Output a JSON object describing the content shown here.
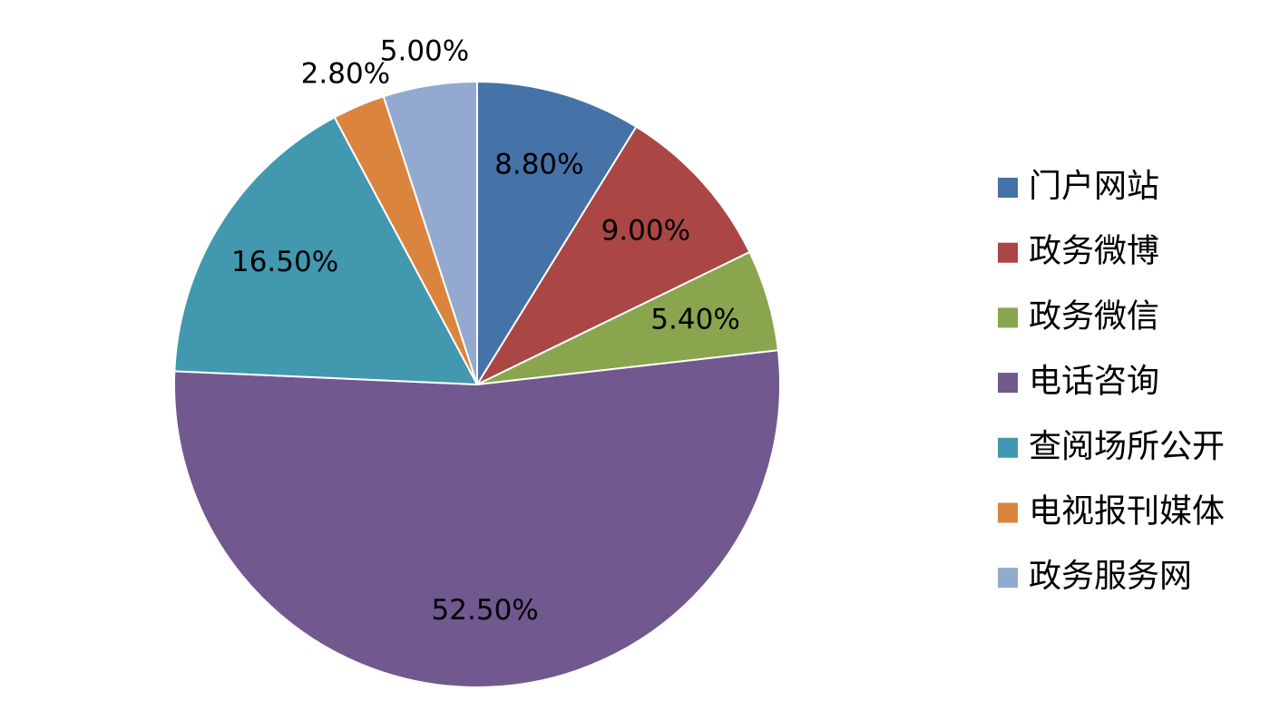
{
  "chart_data": {
    "type": "pie",
    "categories": [
      "门户网站",
      "政务微博",
      "政务微信",
      "电话咨询",
      "查阅场所公开",
      "电视报刊媒体",
      "政务服务网"
    ],
    "values": [
      8.8,
      9.0,
      5.4,
      52.5,
      16.5,
      2.8,
      5.0
    ],
    "value_labels": [
      "8.80%",
      "9.00%",
      "5.40%",
      "52.50%",
      "16.50%",
      "2.80%",
      "5.00%"
    ],
    "colors": [
      "#4572a7",
      "#aa4643",
      "#89a54e",
      "#71588f",
      "#4198af",
      "#db843d",
      "#93a9cf"
    ],
    "legend": "right"
  }
}
